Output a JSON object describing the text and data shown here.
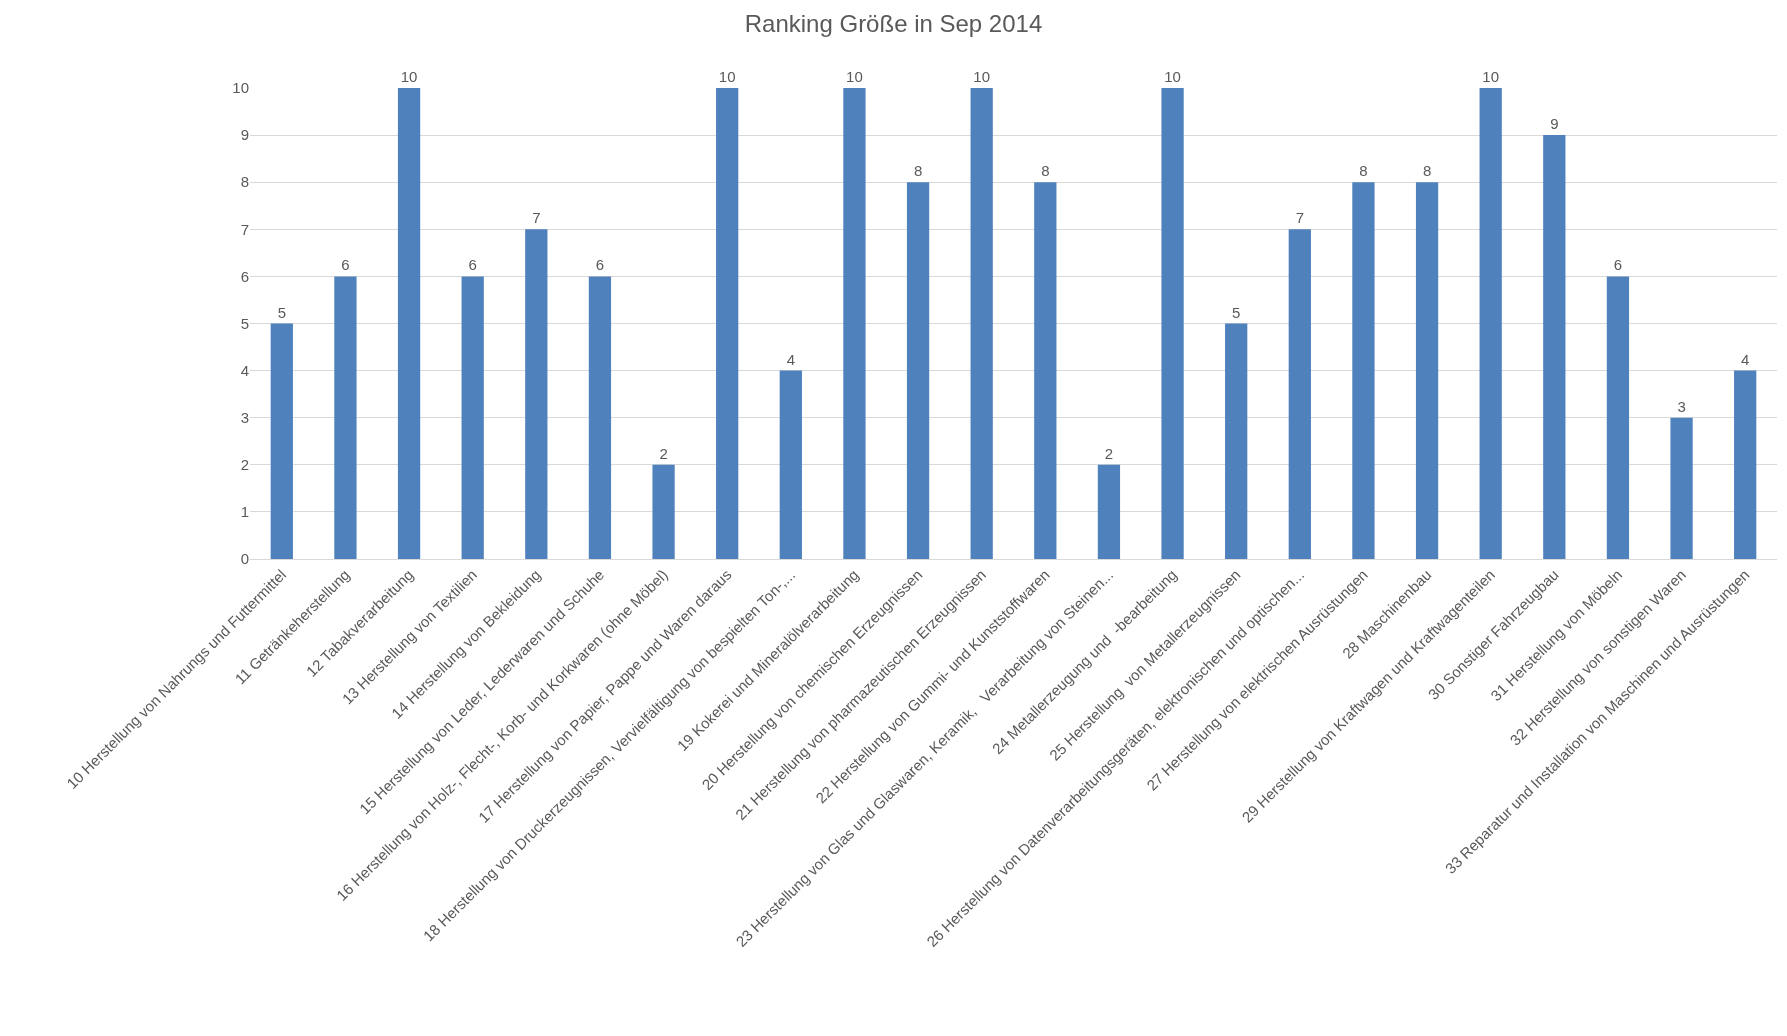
{
  "chart_data": {
    "type": "bar",
    "title": "Ranking Größe in Sep 2014",
    "categories": [
      "10 Herstellung von Nahrungs und Futtermittel",
      "11 Getränkeherstellung",
      "12 Tabakverarbeitung",
      "13 Herstellung von Textilien",
      "14 Herstellung von Bekleidung",
      "15 Herstellung von Leder, Lederwaren und Schuhe",
      "16 Herstellung von Holz-, Flecht-, Korb- und Korkwaren (ohne Möbel)",
      "17 Herstellung von Papier, Pappe und Waren daraus",
      "18 Herstellung von Druckerzeugnissen, Vervielfältigung von bespielten Ton-,...",
      "19 Kokerei und Mineralölverarbeitung",
      "20 Herstellung von chemischen Erzeugnissen",
      "21 Herstellung von pharmazeutischen Erzeugnissen",
      "22 Herstellung von Gummi- und Kunststoffwaren",
      "23 Herstellung von Glas und Glaswaren, Keramik,   Verarbeitung von Steinen...",
      "24 Metallerzeugung und  -bearbeitung",
      "25 Herstellung  von Metallerzeugnissen",
      "26 Herstellung von Datenverarbeitungsgeräten, elektronischen und optischen...",
      "27 Herstellung von elektrischen Ausrüstungen",
      "28 Maschinenbau",
      "29 Herstellung von Kraftwagen und Kraftwagenteilen",
      "30 Sonstiger Fahrzeugbau",
      "31 Herstellung von Möbeln",
      "32 Herstellung von sonstigen Waren",
      "33 Reparatur und Installation von Maschinen und Ausrüstungen"
    ],
    "values": [
      5,
      6,
      10,
      6,
      7,
      6,
      2,
      10,
      4,
      10,
      8,
      10,
      8,
      2,
      10,
      5,
      7,
      8,
      8,
      10,
      9,
      6,
      3,
      4
    ],
    "color": "#4f81bd",
    "ylim": [
      0,
      10
    ],
    "yticks": [
      0,
      1,
      2,
      3,
      4,
      5,
      6,
      7,
      8,
      9,
      10
    ],
    "grid": "y",
    "data_labels": true
  }
}
